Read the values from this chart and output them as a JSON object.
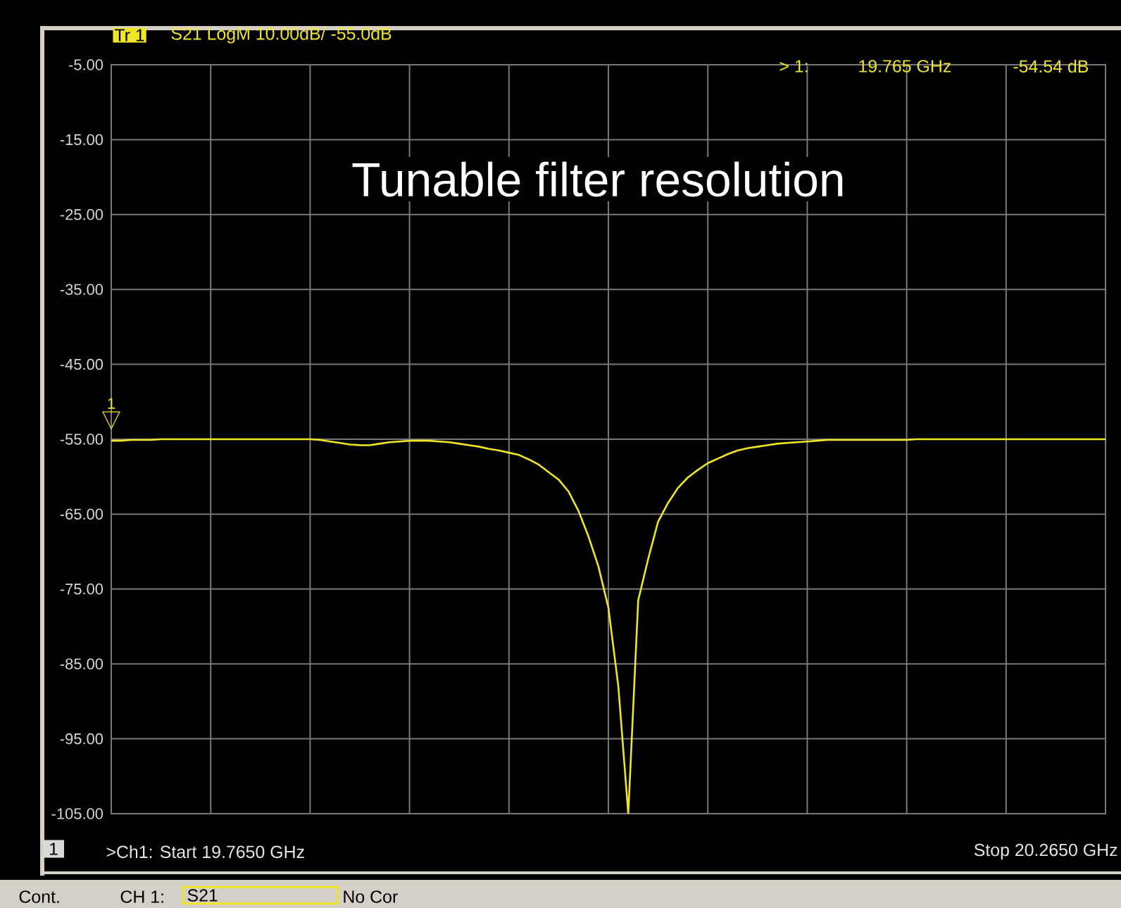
{
  "chart_data": {
    "type": "line",
    "title": "Tunable filter resolution",
    "annotations": [
      "Tr 1",
      "S21 LogM 10.00dB/  -55.0dB",
      "> 1:",
      "19.765 GHz",
      "-54.54 dB",
      {
        "text": "1",
        "y": -54.54
      },
      "1",
      ">Ch1: Start 19.7650 GHz",
      "Stop 20.2650 GHz",
      "Cont.",
      "CH 1:",
      "S21",
      "No Cor"
    ],
    "categories": [
      null,
      null,
      null,
      null,
      null,
      null,
      null,
      null,
      null,
      null,
      null,
      null,
      null,
      null,
      null,
      null,
      null,
      null,
      null,
      null,
      null,
      null,
      null,
      null,
      null,
      null,
      null,
      null,
      null,
      null,
      null,
      null,
      null,
      null,
      null,
      null,
      null,
      null,
      null,
      null,
      null,
      null,
      null,
      null,
      null,
      null,
      null,
      null,
      null,
      null,
      null,
      null,
      null,
      null,
      null,
      null,
      null,
      null,
      null,
      null,
      null,
      null,
      null,
      null,
      null,
      null,
      null,
      null,
      null,
      null,
      null,
      null,
      null,
      null,
      null,
      null,
      null,
      null,
      null,
      null,
      null,
      null,
      null,
      null,
      null,
      null,
      null,
      null,
      null,
      null,
      null,
      null,
      null,
      null,
      null,
      null,
      null,
      null,
      null,
      null,
      null
    ],
    "values": [
      -55.2,
      -55.2,
      -55.1,
      -55.1,
      -55.1,
      -55.0,
      -55.0,
      -55.0,
      -55.0,
      -55.0,
      -55.0,
      -55.0,
      -55.0,
      -55.0,
      -55.0,
      -55.0,
      -55.0,
      -55.0,
      -55.0,
      -55.0,
      -55.0,
      -55.1,
      -55.3,
      -55.5,
      -55.7,
      -55.8,
      -55.8,
      -55.6,
      -55.4,
      -55.3,
      -55.2,
      -55.2,
      -55.2,
      -55.3,
      -55.4,
      -55.6,
      -55.8,
      -56.0,
      -56.3,
      -56.5,
      -56.8,
      -57.1,
      -57.7,
      -58.4,
      -59.4,
      -60.4,
      -62.0,
      -64.6,
      -68.0,
      -72.0,
      -77.5,
      -88.0,
      -105,
      -76.5,
      -71.0,
      -66.0,
      -63.5,
      -61.5,
      -60.1,
      -59.1,
      -58.2,
      -57.6,
      -57.0,
      -56.5,
      -56.2,
      -56.0,
      -55.8,
      -55.6,
      -55.5,
      -55.4,
      -55.3,
      -55.2,
      -55.1,
      -55.1,
      -55.1,
      -55.1,
      -55.1,
      -55.1,
      -55.1,
      -55.1,
      -55.1,
      -55.0,
      -55.0,
      -55.0,
      -55.0,
      -55.0,
      -55.0,
      -55.0,
      -55.0,
      -55.0,
      -55.0,
      -55.0,
      -55.0,
      -55.0,
      -55.0,
      -55.0,
      -55.0,
      -55.0,
      -55.0,
      -55.0,
      -55.0
    ],
    "color": "#f0e628",
    "ylim": [
      -105,
      -5
    ],
    "yticks": [
      {
        "value": -5,
        "label": "-5.00"
      },
      {
        "value": -15,
        "label": "-15.00"
      },
      {
        "value": -25,
        "label": "-25.00"
      },
      {
        "value": -35,
        "label": "-35.00"
      },
      {
        "value": -45,
        "label": "-45.00"
      },
      {
        "value": -55,
        "label": "-55.00"
      },
      {
        "value": -65,
        "label": "-65.00"
      },
      {
        "value": -75,
        "label": "-75.00"
      },
      {
        "value": -85,
        "label": "-85.00"
      },
      {
        "value": -95,
        "label": "-95.00"
      },
      {
        "value": -105,
        "label": "-105.00"
      }
    ],
    "grid": true,
    "tick_labels": "y"
  }
}
